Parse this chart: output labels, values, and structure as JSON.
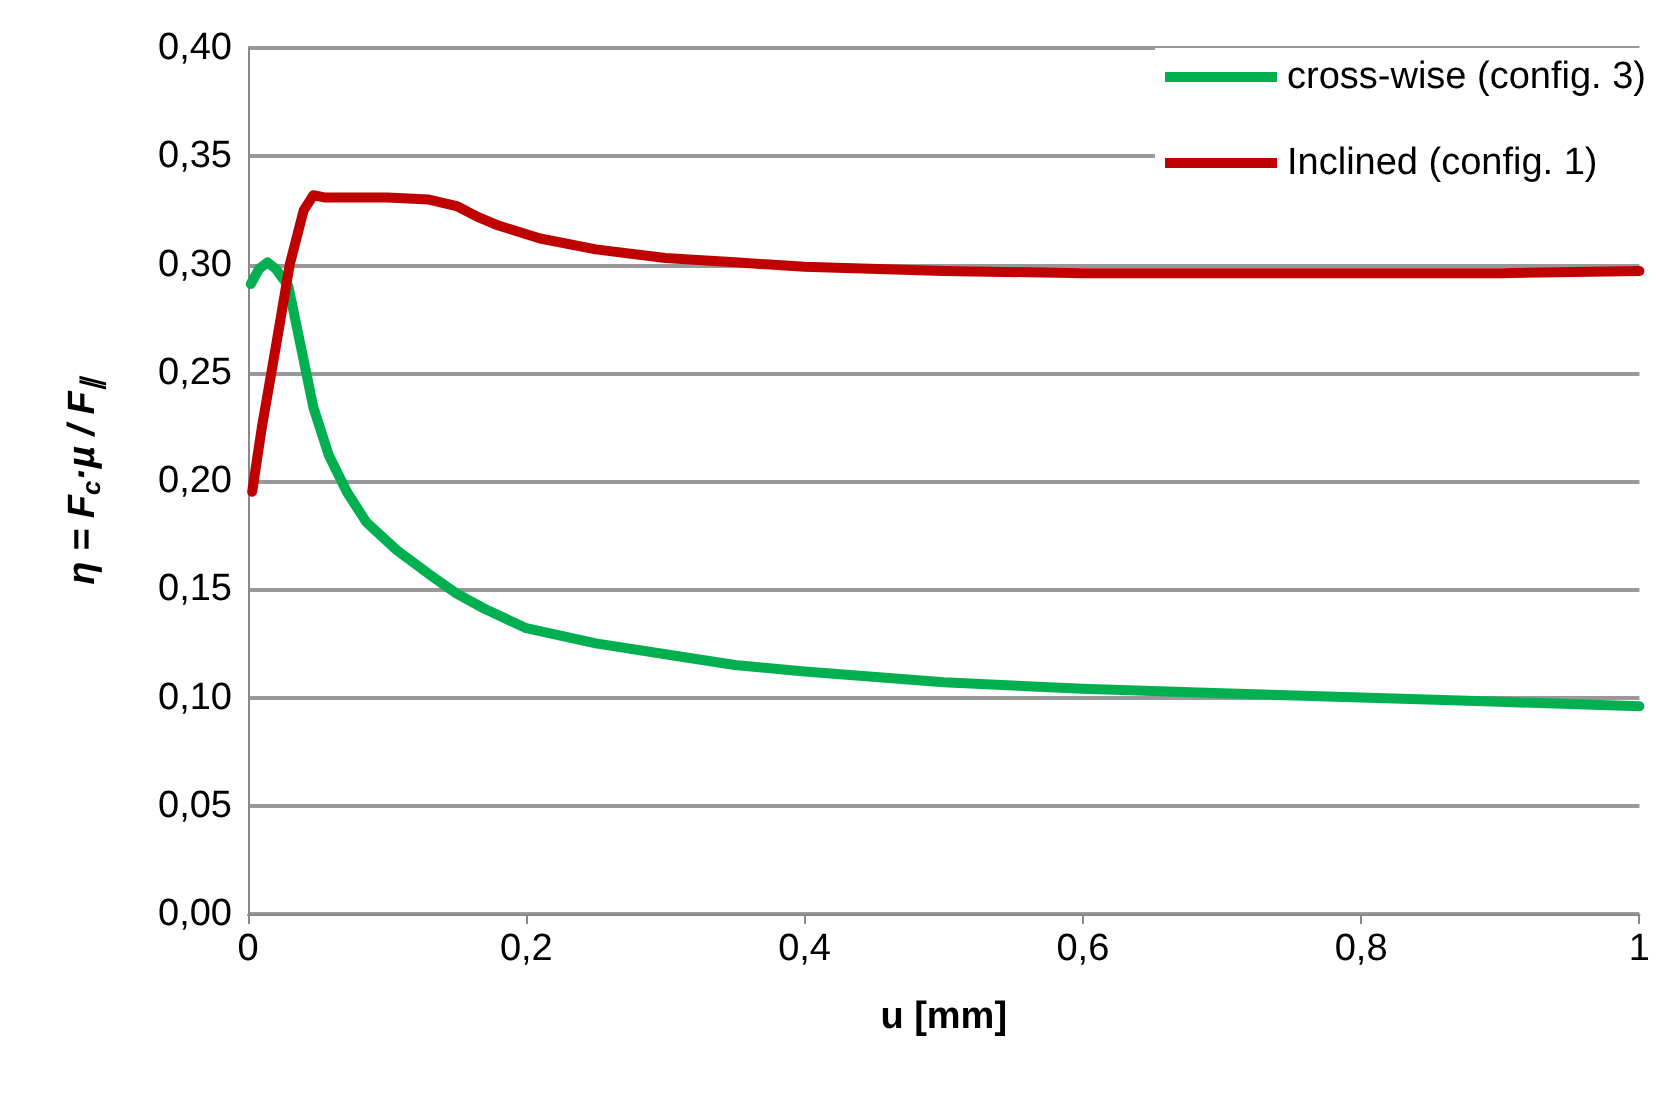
{
  "chart_data": {
    "type": "line",
    "xlabel": "u [mm]",
    "ylabel": "η = F$_{c}$·µ / F$_{∥}$",
    "xlim": [
      0,
      1
    ],
    "xticks": [
      0,
      {
        "value": 0.2,
        "label": "0,2"
      },
      {
        "value": 0.4,
        "label": "0,4"
      },
      {
        "value": 0.6,
        "label": "0,6"
      },
      {
        "value": 0.8,
        "label": "0,8"
      },
      1
    ],
    "ylim": [
      0,
      0.4
    ],
    "yticks": [
      {
        "value": 0,
        "label": "0,00"
      },
      {
        "value": 0.05,
        "label": "0,05"
      },
      {
        "value": 0.1,
        "label": "0,10"
      },
      {
        "value": 0.15,
        "label": "0,15"
      },
      {
        "value": 0.2,
        "label": "0,20"
      },
      {
        "value": 0.25,
        "label": "0,25"
      },
      {
        "value": 0.3,
        "label": "0,30"
      },
      {
        "value": 0.35,
        "label": "0,35"
      },
      {
        "value": 0.4,
        "label": "0,40"
      }
    ],
    "grid": "y",
    "legend": "top right",
    "marker": "none",
    "line_style": "solid",
    "series": [
      {
        "name": "cross-wise (config. 3)",
        "color": "#00b050",
        "x": [
          0.002,
          0.008,
          0.014,
          0.02,
          0.029,
          0.038,
          0.047,
          0.058,
          0.071,
          0.085,
          0.107,
          0.13,
          0.15,
          0.17,
          0.2,
          0.25,
          0.3,
          0.35,
          0.4,
          0.5,
          0.6,
          0.7,
          0.8,
          0.9,
          1.0
        ],
        "values": [
          0.291,
          0.298,
          0.301,
          0.298,
          0.29,
          0.262,
          0.234,
          0.212,
          0.195,
          0.181,
          0.168,
          0.157,
          0.148,
          0.141,
          0.132,
          0.125,
          0.12,
          0.115,
          0.112,
          0.107,
          0.104,
          0.102,
          0.1,
          0.098,
          0.096
        ]
      },
      {
        "name": "Inclined (config. 1)",
        "color": "#c00000",
        "x": [
          0.003,
          0.01,
          0.02,
          0.03,
          0.04,
          0.047,
          0.055,
          0.07,
          0.1,
          0.13,
          0.15,
          0.165,
          0.18,
          0.21,
          0.25,
          0.3,
          0.35,
          0.4,
          0.5,
          0.6,
          0.7,
          0.8,
          0.9,
          1.0
        ],
        "values": [
          0.195,
          0.225,
          0.262,
          0.3,
          0.325,
          0.332,
          0.331,
          0.331,
          0.331,
          0.33,
          0.327,
          0.322,
          0.318,
          0.312,
          0.307,
          0.303,
          0.301,
          0.299,
          0.297,
          0.296,
          0.296,
          0.296,
          0.296,
          0.297
        ]
      }
    ]
  }
}
